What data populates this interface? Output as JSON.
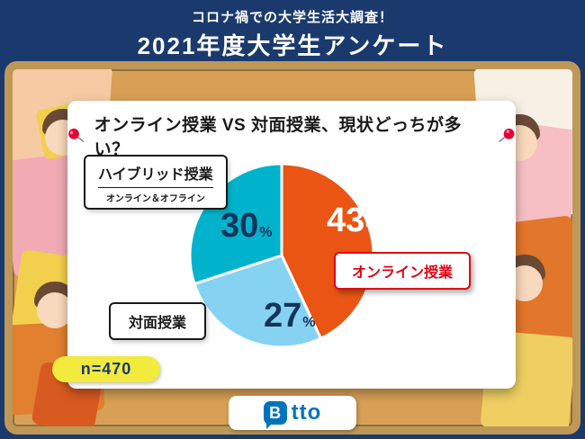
{
  "banner": {
    "subtitle": "コロナ禍での大学生活大調査！",
    "title": "2021年度大学生アンケート"
  },
  "card": {
    "title": "オンライン授業 VS 対面授業、現状どっちが多い？"
  },
  "chart_data": {
    "type": "pie",
    "title": "オンライン授業 VS 対面授業、現状どっちが多い？",
    "n": 470,
    "percent_suffix": "%",
    "start_angle_deg": 0,
    "direction": "clockwise",
    "slices": [
      {
        "label": "オンライン授業",
        "value": 43,
        "color": "#ea5514",
        "label_style": "red-box"
      },
      {
        "label": "対面授業",
        "value": 27,
        "color": "#85d2f2",
        "label_style": "black-box"
      },
      {
        "label": "ハイブリッド授業",
        "sublabel": "オンライン＆オフライン",
        "value": 30,
        "color": "#00b2cb",
        "label_style": "black-box"
      }
    ]
  },
  "footer": {
    "n_label": "n=470",
    "logo_initial": "B",
    "logo_rest": "tto"
  },
  "colors": {
    "banner_navy": "#1a3a6e",
    "frame_wood": "#bf9858",
    "accent_red": "#e50012",
    "badge_yellow": "#f2ea3d",
    "logo_blue": "#0073bd"
  }
}
